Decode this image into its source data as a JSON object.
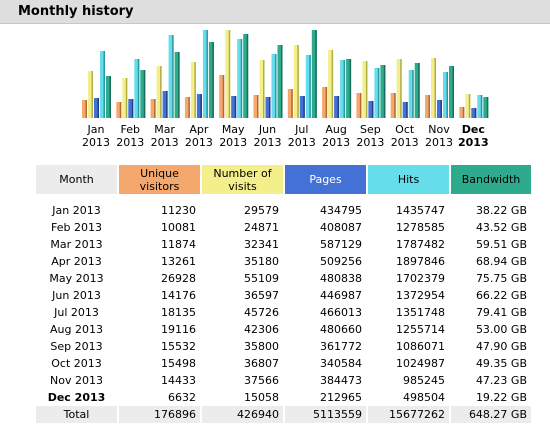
{
  "header": {
    "title": "Monthly history"
  },
  "colors": {
    "unique": "#f5a86e",
    "visits": "#f3f08c",
    "pages": "#4471d6",
    "hits": "#66ddea",
    "bandwidth": "#2eab8c",
    "header_bg": "#dedede",
    "total_bg": "#ececec"
  },
  "chart_data": {
    "type": "bar",
    "categories": [
      "Jan 2013",
      "Feb 2013",
      "Mar 2013",
      "Apr 2013",
      "May 2013",
      "Jun 2013",
      "Jul 2013",
      "Aug 2013",
      "Sep 2013",
      "Oct 2013",
      "Nov 2013",
      "Dec 2013"
    ],
    "month_labels": [
      [
        "Jan",
        "2013"
      ],
      [
        "Feb",
        "2013"
      ],
      [
        "Mar",
        "2013"
      ],
      [
        "Apr",
        "2013"
      ],
      [
        "May",
        "2013"
      ],
      [
        "Jun",
        "2013"
      ],
      [
        "Jul",
        "2013"
      ],
      [
        "Aug",
        "2013"
      ],
      [
        "Sep",
        "2013"
      ],
      [
        "Oct",
        "2013"
      ],
      [
        "Nov",
        "2013"
      ],
      [
        "Dec",
        "2013"
      ]
    ],
    "current_index": 11,
    "series": [
      {
        "key": "unique",
        "values": [
          11230,
          10081,
          11874,
          13261,
          26928,
          14176,
          18135,
          19116,
          15532,
          15498,
          14433,
          6632
        ]
      },
      {
        "key": "visits",
        "values": [
          29579,
          24871,
          32341,
          35180,
          55109,
          36597,
          45726,
          42306,
          35800,
          36807,
          37566,
          15058
        ]
      },
      {
        "key": "pages",
        "values": [
          434795,
          408087,
          587129,
          509256,
          480838,
          446987,
          466013,
          480660,
          361772,
          340584,
          384473,
          212965
        ]
      },
      {
        "key": "hits",
        "values": [
          1435747,
          1278585,
          1787482,
          1897846,
          1702379,
          1372954,
          1351748,
          1255714,
          1086071,
          1024987,
          985245,
          498504
        ]
      },
      {
        "key": "bandwidth",
        "values": [
          38.22,
          43.52,
          59.51,
          68.94,
          75.75,
          66.22,
          79.41,
          53.0,
          47.9,
          49.35,
          47.23,
          19.22
        ]
      }
    ]
  },
  "table": {
    "headers": {
      "month": "Month",
      "unique": "Unique visitors",
      "visits": "Number of visits",
      "pages": "Pages",
      "hits": "Hits",
      "bandwidth": "Bandwidth"
    },
    "rows": [
      {
        "month": "Jan 2013",
        "unique": "11230",
        "visits": "29579",
        "pages": "434795",
        "hits": "1435747",
        "bandwidth": "38.22 GB"
      },
      {
        "month": "Feb 2013",
        "unique": "10081",
        "visits": "24871",
        "pages": "408087",
        "hits": "1278585",
        "bandwidth": "43.52 GB"
      },
      {
        "month": "Mar 2013",
        "unique": "11874",
        "visits": "32341",
        "pages": "587129",
        "hits": "1787482",
        "bandwidth": "59.51 GB"
      },
      {
        "month": "Apr 2013",
        "unique": "13261",
        "visits": "35180",
        "pages": "509256",
        "hits": "1897846",
        "bandwidth": "68.94 GB"
      },
      {
        "month": "May 2013",
        "unique": "26928",
        "visits": "55109",
        "pages": "480838",
        "hits": "1702379",
        "bandwidth": "75.75 GB"
      },
      {
        "month": "Jun 2013",
        "unique": "14176",
        "visits": "36597",
        "pages": "446987",
        "hits": "1372954",
        "bandwidth": "66.22 GB"
      },
      {
        "month": "Jul 2013",
        "unique": "18135",
        "visits": "45726",
        "pages": "466013",
        "hits": "1351748",
        "bandwidth": "79.41 GB"
      },
      {
        "month": "Aug 2013",
        "unique": "19116",
        "visits": "42306",
        "pages": "480660",
        "hits": "1255714",
        "bandwidth": "53.00 GB"
      },
      {
        "month": "Sep 2013",
        "unique": "15532",
        "visits": "35800",
        "pages": "361772",
        "hits": "1086071",
        "bandwidth": "47.90 GB"
      },
      {
        "month": "Oct 2013",
        "unique": "15498",
        "visits": "36807",
        "pages": "340584",
        "hits": "1024987",
        "bandwidth": "49.35 GB"
      },
      {
        "month": "Nov 2013",
        "unique": "14433",
        "visits": "37566",
        "pages": "384473",
        "hits": "985245",
        "bandwidth": "47.23 GB"
      },
      {
        "month": "Dec 2013",
        "unique": "6632",
        "visits": "15058",
        "pages": "212965",
        "hits": "498504",
        "bandwidth": "19.22 GB"
      }
    ],
    "total": {
      "month": "Total",
      "unique": "176896",
      "visits": "426940",
      "pages": "5113559",
      "hits": "15677262",
      "bandwidth": "648.27 GB"
    }
  }
}
